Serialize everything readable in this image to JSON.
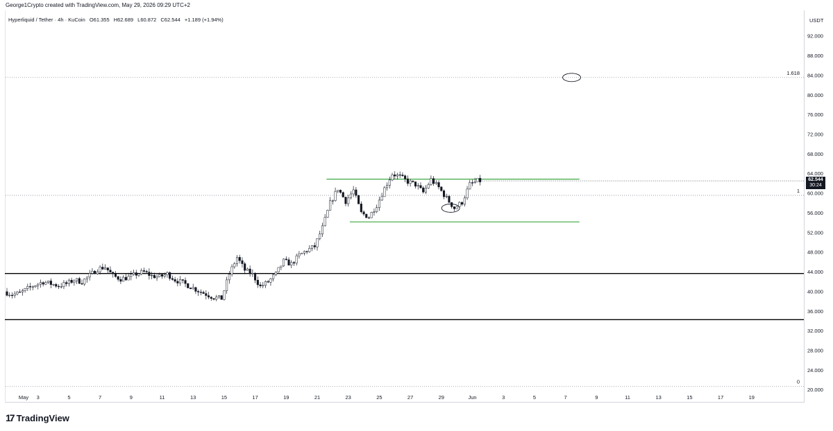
{
  "header": {
    "credit": "George1Crypto created with TradingView.com, May 29, 2026 09:29 UTC+2"
  },
  "legend": {
    "symbol": "Hyperliquid / Tether · 4h · KuCoin",
    "open": "O61.355",
    "high": "H62.689",
    "low": "L60.872",
    "close": "C62.544",
    "change": "+1.189 (+1.94%)"
  },
  "price_axis": {
    "unit": "USDT",
    "last_price": "62.544",
    "countdown": "30:24"
  },
  "brand": {
    "logo_text": "TradingView",
    "logo_icon": "tradingview-logo-icon"
  },
  "chart_data": {
    "type": "candlestick",
    "timeframe": "4h",
    "x_tick_labels": [
      "May",
      "3",
      "5",
      "7",
      "9",
      "11",
      "13",
      "15",
      "17",
      "19",
      "21",
      "23",
      "25",
      "27",
      "29",
      "Jun",
      "3",
      "5",
      "7",
      "9",
      "11",
      "13",
      "15",
      "17",
      "19"
    ],
    "y_tick_labels": [
      "92.000",
      "88.000",
      "84.000",
      "80.000",
      "76.000",
      "72.000",
      "68.000",
      "64.000",
      "60.000",
      "56.000",
      "52.000",
      "48.000",
      "44.000",
      "40.000",
      "36.000",
      "32.000",
      "28.000",
      "24.000",
      "20.000"
    ],
    "ylim": [
      20,
      94
    ],
    "x_day_range": [
      0,
      50
    ],
    "fib_levels": [
      {
        "label": "1.618",
        "price": 83.6
      },
      {
        "label": "1",
        "price": 59.6
      },
      {
        "label": "0",
        "price": 20.7
      }
    ],
    "horizontal_lines": [
      {
        "price": 43.7,
        "color": "#000000",
        "x_start": 0,
        "x_end": 50
      },
      {
        "price": 34.3,
        "color": "#000000",
        "x_start": 0,
        "x_end": 50
      }
    ],
    "range_lines": [
      {
        "price": 62.9,
        "color": "#4caf50",
        "x_start": 20.6,
        "x_end": 36.9
      },
      {
        "price": 54.2,
        "color": "#4caf50",
        "x_start": 22.1,
        "x_end": 36.9
      }
    ],
    "ellipses": [
      {
        "center_day": 36.4,
        "center_price": 83.6
      },
      {
        "center_day": 28.6,
        "center_price": 57.0
      }
    ],
    "price_path": [
      [
        0.0,
        40.0
      ],
      [
        0.5,
        39.4
      ],
      [
        1.0,
        39.7
      ],
      [
        1.5,
        40.6
      ],
      [
        2.0,
        41.4
      ],
      [
        2.5,
        42.0
      ],
      [
        3.0,
        41.6
      ],
      [
        3.5,
        41.2
      ],
      [
        4.0,
        41.6
      ],
      [
        4.5,
        42.4
      ],
      [
        5.0,
        42.0
      ],
      [
        5.5,
        43.3
      ],
      [
        6.0,
        44.6
      ],
      [
        6.5,
        45.0
      ],
      [
        7.0,
        43.2
      ],
      [
        7.5,
        42.6
      ],
      [
        8.0,
        42.9
      ],
      [
        8.5,
        43.6
      ],
      [
        9.0,
        44.0
      ],
      [
        9.5,
        43.2
      ],
      [
        10.0,
        43.0
      ],
      [
        10.5,
        43.6
      ],
      [
        11.0,
        42.4
      ],
      [
        11.5,
        41.8
      ],
      [
        12.0,
        41.0
      ],
      [
        12.5,
        40.2
      ],
      [
        13.0,
        39.5
      ],
      [
        13.5,
        38.8
      ],
      [
        14.0,
        38.6
      ],
      [
        14.5,
        43.6
      ],
      [
        15.0,
        47.0
      ],
      [
        15.5,
        44.4
      ],
      [
        16.0,
        43.5
      ],
      [
        16.5,
        41.0
      ],
      [
        17.0,
        42.0
      ],
      [
        17.5,
        43.6
      ],
      [
        18.0,
        46.2
      ],
      [
        18.5,
        45.6
      ],
      [
        19.0,
        47.4
      ],
      [
        19.5,
        48.4
      ],
      [
        20.0,
        49.2
      ],
      [
        20.5,
        53.0
      ],
      [
        21.0,
        58.0
      ],
      [
        21.5,
        61.0
      ],
      [
        22.0,
        58.4
      ],
      [
        22.5,
        60.6
      ],
      [
        23.0,
        56.0
      ],
      [
        23.5,
        55.2
      ],
      [
        24.0,
        57.6
      ],
      [
        24.5,
        61.0
      ],
      [
        25.0,
        64.0
      ],
      [
        25.5,
        63.4
      ],
      [
        26.0,
        62.4
      ],
      [
        26.5,
        61.8
      ],
      [
        27.0,
        60.2
      ],
      [
        27.5,
        62.8
      ],
      [
        28.0,
        61.2
      ],
      [
        28.5,
        59.0
      ],
      [
        29.0,
        57.0
      ],
      [
        29.5,
        58.2
      ],
      [
        30.0,
        61.8
      ],
      [
        30.5,
        62.544
      ]
    ]
  }
}
